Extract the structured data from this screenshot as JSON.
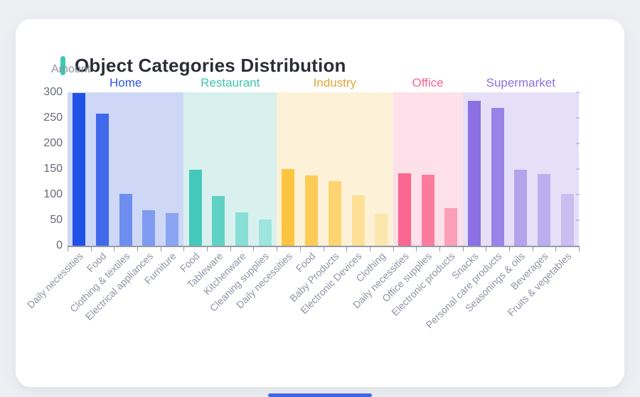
{
  "header": {
    "title": "Object Categories Distribution"
  },
  "theme": {
    "accent_color": "#3fc8b4",
    "page_bg": "#edeff3",
    "card_bg": "#ffffff",
    "title_color": "#2b2e36",
    "axis_color": "#949aa5",
    "y_label_color": "#666a73",
    "x_label_color": "#8f94a3",
    "amount_label_color": "#8e939c",
    "home_indicator_color": "#4263eb"
  },
  "chart_data": {
    "type": "bar",
    "title": "Object Categories Distribution",
    "xlabel": "",
    "ylabel": "Amount",
    "ylim": [
      0,
      300
    ],
    "yticks": [
      0,
      50,
      100,
      150,
      200,
      250,
      300
    ],
    "grid": false,
    "legend_position": "group labels above colored background bands",
    "groups": [
      {
        "name": "Home",
        "name_color": "#2b55e8",
        "band_color": "#ced8f6",
        "bar_colors": [
          "#1f51e6",
          "#4069e9",
          "#6d8eef",
          "#7f9bf1",
          "#8ba4f1"
        ],
        "items": [
          {
            "label": "Daily necessities",
            "value": 298
          },
          {
            "label": "Food",
            "value": 258
          },
          {
            "label": "Clothing & textiles",
            "value": 102
          },
          {
            "label": "Electrical appliances",
            "value": 70
          },
          {
            "label": "Furniture",
            "value": 64
          }
        ]
      },
      {
        "name": "Restaurant",
        "name_color": "#3fc4b1",
        "band_color": "#d8f1ee",
        "bar_colors": [
          "#44c8bb",
          "#60d1c5",
          "#89ded6",
          "#9de5de"
        ],
        "items": [
          {
            "label": "Food",
            "value": 148
          },
          {
            "label": "Tableware",
            "value": 97
          },
          {
            "label": "Kitchenware",
            "value": 65
          },
          {
            "label": "Cleaning supplies",
            "value": 51
          }
        ]
      },
      {
        "name": "Industry",
        "name_color": "#e2a63a",
        "band_color": "#fdf2d8",
        "bar_colors": [
          "#fdc440",
          "#fccb58",
          "#fdd470",
          "#fde095",
          "#fbe6ac"
        ],
        "items": [
          {
            "label": "Daily necessities",
            "value": 150
          },
          {
            "label": "Food",
            "value": 138
          },
          {
            "label": "Baby Products",
            "value": 126
          },
          {
            "label": "Electronic Devices",
            "value": 99
          },
          {
            "label": "Clothing",
            "value": 63
          }
        ]
      },
      {
        "name": "Office",
        "name_color": "#f9628f",
        "band_color": "#fde0e9",
        "bar_colors": [
          "#fa6790",
          "#fb7b9e",
          "#fc9fb9"
        ],
        "items": [
          {
            "label": "Daily necessities",
            "value": 142
          },
          {
            "label": "Office supplies",
            "value": 139
          },
          {
            "label": "Electronic products",
            "value": 74
          }
        ]
      },
      {
        "name": "Supermarket",
        "name_color": "#8871dd",
        "band_color": "#e5dff7",
        "bar_colors": [
          "#8b70e3",
          "#9a83e6",
          "#b2a3eb",
          "#bcaeee",
          "#c9bdf1"
        ],
        "items": [
          {
            "label": "Snacks",
            "value": 284
          },
          {
            "label": "Personal care products",
            "value": 270
          },
          {
            "label": "Seasonings & oils",
            "value": 148
          },
          {
            "label": "Beverages",
            "value": 140
          },
          {
            "label": "Fruits & vegetables",
            "value": 102
          }
        ]
      }
    ]
  }
}
